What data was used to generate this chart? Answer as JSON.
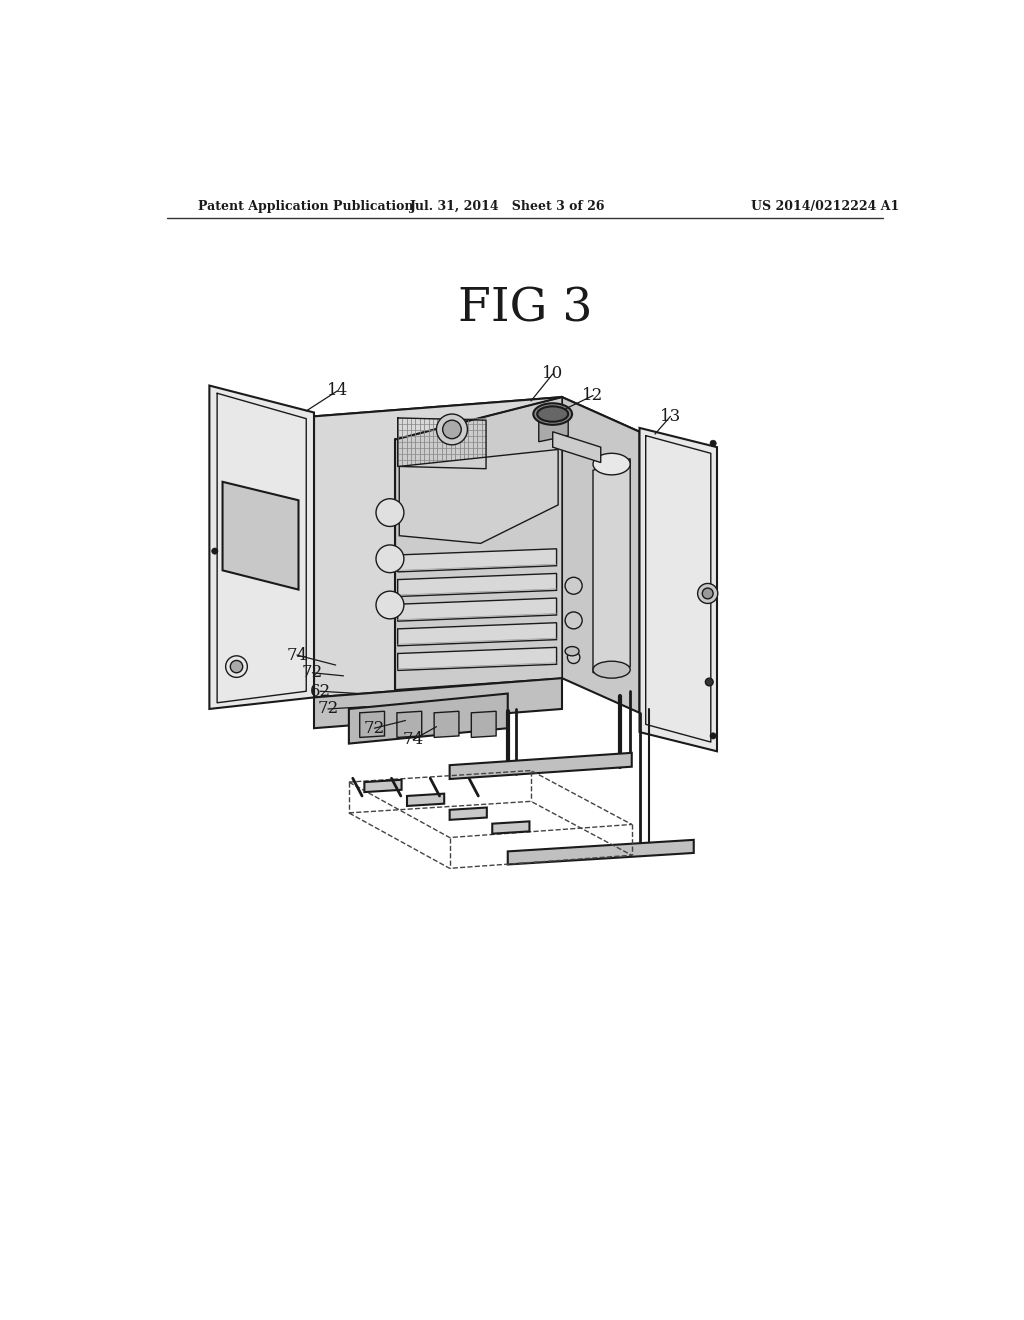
{
  "bg_color": "#ffffff",
  "line_color": "#1a1a1a",
  "header_left": "Patent Application Publication",
  "header_center": "Jul. 31, 2014   Sheet 3 of 26",
  "header_right": "US 2014/0212224 A1",
  "fig_title": "FIG 3",
  "gray_light": "#e8e8e8",
  "gray_mid": "#d0d0d0",
  "gray_dark": "#b0b0b0",
  "gray_panel": "#c8c8c8"
}
